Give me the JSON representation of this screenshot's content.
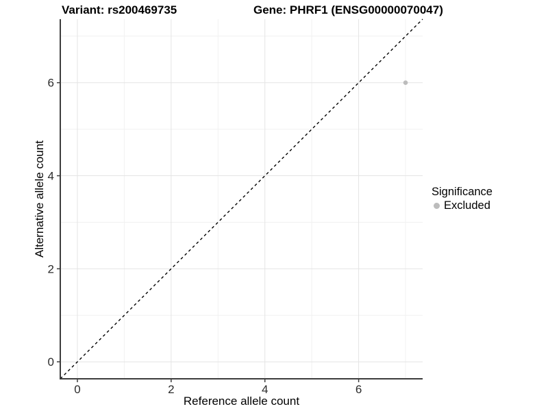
{
  "titles": {
    "variant": "Variant: rs200469735",
    "gene": "Gene: PHRF1 (ENSG00000070047)"
  },
  "chart_data": {
    "type": "scatter",
    "title_left": "Variant: rs200469735",
    "title_right": "Gene: PHRF1 (ENSG00000070047)",
    "xlabel": "Reference allele count",
    "ylabel": "Alternative allele count",
    "xlim": [
      -0.365,
      7.365
    ],
    "ylim": [
      -0.365,
      7.365
    ],
    "x_ticks": [
      0,
      2,
      4,
      6
    ],
    "y_ticks": [
      0,
      2,
      4,
      6
    ],
    "x_minor": [
      1,
      3,
      5,
      7
    ],
    "y_minor": [
      1,
      3,
      5,
      7
    ],
    "grid": true,
    "legend_position": "right",
    "series": [
      {
        "name": "Excluded",
        "color": "#bcbcbc",
        "points": [
          {
            "x": 7,
            "y": 6
          }
        ]
      }
    ],
    "reference_line": {
      "type": "identity",
      "from": -0.365,
      "to": 7.365,
      "style": "dashed",
      "color": "#000000"
    }
  },
  "legend": {
    "title": "Significance",
    "items": [
      {
        "label": "Excluded",
        "color": "#bcbcbc"
      }
    ]
  },
  "colors": {
    "background": "#ffffff",
    "axis_line": "#3c3c3c",
    "tick_label": "#2b2b2b",
    "axis_title": "#000000",
    "grid_major": "#e4e4e4",
    "grid_minor": "#f1f1f1",
    "point": "#bcbcbc",
    "dashed_line": "#000000"
  }
}
